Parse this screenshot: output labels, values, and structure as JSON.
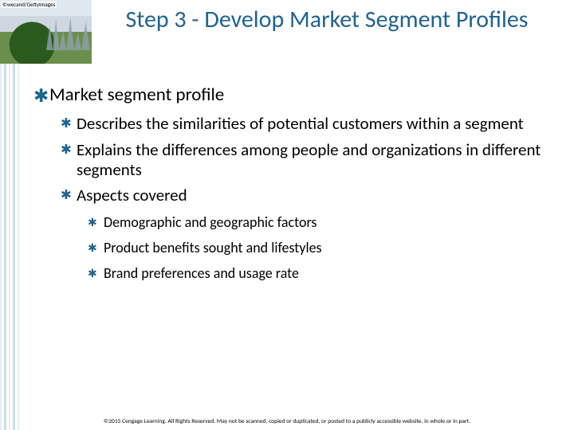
{
  "attribution": "©wecand/GettyImages",
  "title": "Step 3 - Develop Market Segment Profiles",
  "colors": {
    "title": "#1f6391",
    "bullet": "#1f6391",
    "body": "#000000"
  },
  "fontsizes": {
    "title": 30,
    "lvl1": 23,
    "lvl2": 21,
    "lvl3": 18,
    "footer": 7.5,
    "attribution": 7
  },
  "bullet_glyphs": {
    "lvl1": "✱",
    "lvl2": "✱",
    "lvl3": "✱"
  },
  "outline": {
    "lvl1": [
      {
        "text": "Market segment profile",
        "children": [
          {
            "text": "Describes the similarities of potential customers within a segment"
          },
          {
            "text": "Explains the differences among people and organizations in different segments"
          },
          {
            "text": "Aspects covered",
            "children": [
              {
                "text": "Demographic and geographic factors"
              },
              {
                "text": "Product benefits sought and lifestyles"
              },
              {
                "text": "Brand preferences and usage rate"
              }
            ]
          }
        ]
      }
    ]
  },
  "footer": "©2015 Cengage Learning. All Rights Reserved. May not be scanned, copied or duplicated, or posted to a publicly accessible website, in whole or in part."
}
